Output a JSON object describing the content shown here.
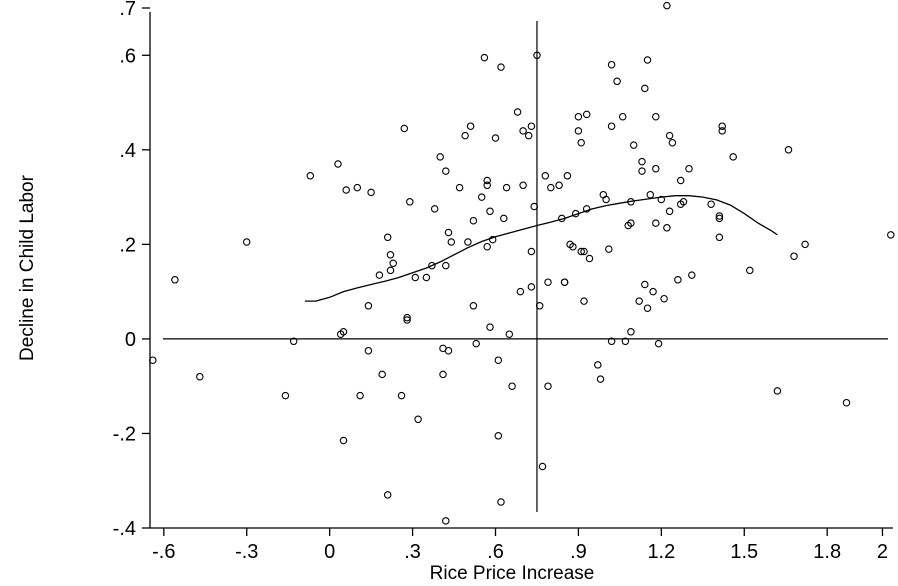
{
  "chart_data": {
    "type": "scatter",
    "title": "",
    "xlabel": "Rice Price Increase",
    "ylabel": "Decline in Child Labor",
    "xlim": [
      -0.65,
      2.02
    ],
    "ylim": [
      -0.4,
      0.7
    ],
    "x_ticks": [
      -0.6,
      -0.3,
      0,
      0.3,
      0.6,
      0.9,
      1.2,
      1.5,
      1.8,
      2
    ],
    "x_tick_labels": [
      "-.6",
      "-.3",
      "0",
      ".3",
      ".6",
      ".9",
      "1.2",
      "1.5",
      "1.8",
      "2"
    ],
    "y_ticks": [
      -0.4,
      -0.2,
      0,
      0.2,
      0.4,
      0.6,
      0.7
    ],
    "y_tick_labels": [
      "-.4",
      "-.2",
      "0",
      ".2",
      ".4",
      ".6",
      ".7"
    ],
    "grid": false,
    "reference_lines": {
      "x": 0.75,
      "y": 0
    },
    "series": [
      {
        "type": "scatter",
        "points": [
          [
            -0.64,
            -0.045
          ],
          [
            -0.56,
            0.125
          ],
          [
            -0.47,
            -0.08
          ],
          [
            -0.3,
            0.205
          ],
          [
            -0.16,
            -0.12
          ],
          [
            -0.13,
            -0.005
          ],
          [
            -0.07,
            0.345
          ],
          [
            0.03,
            0.37
          ],
          [
            0.04,
            0.01
          ],
          [
            0.05,
            0.015
          ],
          [
            0.05,
            -0.215
          ],
          [
            0.06,
            0.315
          ],
          [
            0.1,
            0.32
          ],
          [
            0.11,
            -0.12
          ],
          [
            0.14,
            0.07
          ],
          [
            0.14,
            -0.025
          ],
          [
            0.15,
            0.31
          ],
          [
            0.18,
            0.135
          ],
          [
            0.19,
            -0.075
          ],
          [
            0.21,
            0.215
          ],
          [
            0.21,
            -0.33
          ],
          [
            0.22,
            0.145
          ],
          [
            0.22,
            0.178
          ],
          [
            0.23,
            0.16
          ],
          [
            0.26,
            -0.12
          ],
          [
            0.27,
            0.445
          ],
          [
            0.28,
            0.045
          ],
          [
            0.28,
            0.04
          ],
          [
            0.29,
            0.29
          ],
          [
            0.31,
            0.13
          ],
          [
            0.32,
            -0.17
          ],
          [
            0.35,
            0.13
          ],
          [
            0.37,
            0.155
          ],
          [
            0.38,
            0.275
          ],
          [
            0.4,
            0.385
          ],
          [
            0.41,
            -0.075
          ],
          [
            0.41,
            -0.02
          ],
          [
            0.42,
            0.155
          ],
          [
            0.42,
            0.355
          ],
          [
            0.43,
            -0.025
          ],
          [
            0.43,
            0.225
          ],
          [
            0.44,
            0.205
          ],
          [
            0.42,
            -0.385
          ],
          [
            0.47,
            0.32
          ],
          [
            0.49,
            0.43
          ],
          [
            0.5,
            0.205
          ],
          [
            0.51,
            0.45
          ],
          [
            0.52,
            0.25
          ],
          [
            0.52,
            0.07
          ],
          [
            0.53,
            -0.01
          ],
          [
            0.55,
            0.3
          ],
          [
            0.56,
            0.595
          ],
          [
            0.57,
            0.335
          ],
          [
            0.57,
            0.195
          ],
          [
            0.57,
            0.325
          ],
          [
            0.58,
            0.27
          ],
          [
            0.58,
            0.025
          ],
          [
            0.59,
            0.21
          ],
          [
            0.6,
            0.425
          ],
          [
            0.61,
            -0.205
          ],
          [
            0.61,
            -0.045
          ],
          [
            0.62,
            0.575
          ],
          [
            0.62,
            -0.345
          ],
          [
            0.63,
            0.255
          ],
          [
            0.64,
            0.32
          ],
          [
            0.65,
            0.01
          ],
          [
            0.66,
            -0.1
          ],
          [
            0.68,
            0.48
          ],
          [
            0.69,
            0.1
          ],
          [
            0.7,
            0.325
          ],
          [
            0.7,
            0.44
          ],
          [
            0.72,
            0.43
          ],
          [
            0.73,
            0.11
          ],
          [
            0.73,
            0.45
          ],
          [
            0.73,
            0.185
          ],
          [
            0.74,
            0.28
          ],
          [
            0.75,
            0.6
          ],
          [
            0.76,
            0.07
          ],
          [
            0.77,
            -0.27
          ],
          [
            0.78,
            0.345
          ],
          [
            0.79,
            0.12
          ],
          [
            0.79,
            -0.1
          ],
          [
            0.8,
            0.32
          ],
          [
            0.83,
            0.325
          ],
          [
            0.84,
            0.255
          ],
          [
            0.85,
            0.12
          ],
          [
            0.85,
            0.12
          ],
          [
            0.86,
            0.345
          ],
          [
            0.87,
            0.2
          ],
          [
            0.88,
            0.195
          ],
          [
            0.89,
            0.265
          ],
          [
            0.9,
            0.47
          ],
          [
            0.9,
            0.44
          ],
          [
            0.91,
            0.415
          ],
          [
            0.91,
            0.185
          ],
          [
            0.92,
            0.08
          ],
          [
            0.92,
            0.185
          ],
          [
            0.93,
            0.475
          ],
          [
            0.93,
            0.275
          ],
          [
            0.94,
            0.17
          ],
          [
            0.97,
            -0.055
          ],
          [
            0.98,
            -0.085
          ],
          [
            0.99,
            0.305
          ],
          [
            1.0,
            0.295
          ],
          [
            1.01,
            0.19
          ],
          [
            1.02,
            0.45
          ],
          [
            1.02,
            0.58
          ],
          [
            1.02,
            -0.005
          ],
          [
            1.04,
            0.545
          ],
          [
            1.06,
            0.47
          ],
          [
            1.07,
            -0.005
          ],
          [
            1.08,
            0.24
          ],
          [
            1.09,
            0.245
          ],
          [
            1.09,
            0.29
          ],
          [
            1.09,
            0.015
          ],
          [
            1.1,
            0.41
          ],
          [
            1.12,
            0.08
          ],
          [
            1.13,
            0.355
          ],
          [
            1.13,
            0.375
          ],
          [
            1.14,
            0.115
          ],
          [
            1.14,
            0.53
          ],
          [
            1.15,
            0.59
          ],
          [
            1.15,
            0.065
          ],
          [
            1.16,
            0.305
          ],
          [
            1.17,
            0.1
          ],
          [
            1.18,
            0.47
          ],
          [
            1.18,
            0.245
          ],
          [
            1.18,
            0.36
          ],
          [
            1.19,
            -0.01
          ],
          [
            1.2,
            0.295
          ],
          [
            1.21,
            0.085
          ],
          [
            1.22,
            0.705
          ],
          [
            1.22,
            0.235
          ],
          [
            1.23,
            0.43
          ],
          [
            1.23,
            0.27
          ],
          [
            1.24,
            0.415
          ],
          [
            1.26,
            0.125
          ],
          [
            1.27,
            0.335
          ],
          [
            1.27,
            0.285
          ],
          [
            1.28,
            0.29
          ],
          [
            1.3,
            0.36
          ],
          [
            1.31,
            0.135
          ],
          [
            1.38,
            0.285
          ],
          [
            1.41,
            0.26
          ],
          [
            1.41,
            0.255
          ],
          [
            1.41,
            0.215
          ],
          [
            1.42,
            0.44
          ],
          [
            1.42,
            0.45
          ],
          [
            1.46,
            0.385
          ],
          [
            1.52,
            0.145
          ],
          [
            1.62,
            -0.11
          ],
          [
            1.66,
            0.4
          ],
          [
            1.68,
            0.175
          ],
          [
            1.72,
            0.2
          ],
          [
            1.87,
            -0.135
          ],
          [
            2.03,
            0.22
          ]
        ]
      },
      {
        "type": "line",
        "name": "",
        "x": [
          -0.09,
          -0.05,
          0.0,
          0.05,
          0.1,
          0.15,
          0.2,
          0.25,
          0.3,
          0.35,
          0.4,
          0.45,
          0.5,
          0.55,
          0.6,
          0.65,
          0.7,
          0.75,
          0.8,
          0.85,
          0.9,
          0.95,
          1.0,
          1.05,
          1.1,
          1.15,
          1.2,
          1.25,
          1.3,
          1.35,
          1.4,
          1.45,
          1.5,
          1.55,
          1.6,
          1.62
        ],
        "y": [
          0.08,
          0.08,
          0.088,
          0.1,
          0.108,
          0.115,
          0.122,
          0.13,
          0.14,
          0.15,
          0.163,
          0.178,
          0.193,
          0.206,
          0.216,
          0.224,
          0.232,
          0.24,
          0.247,
          0.255,
          0.265,
          0.275,
          0.282,
          0.287,
          0.292,
          0.296,
          0.3,
          0.303,
          0.303,
          0.3,
          0.294,
          0.283,
          0.265,
          0.245,
          0.228,
          0.22
        ]
      }
    ]
  }
}
